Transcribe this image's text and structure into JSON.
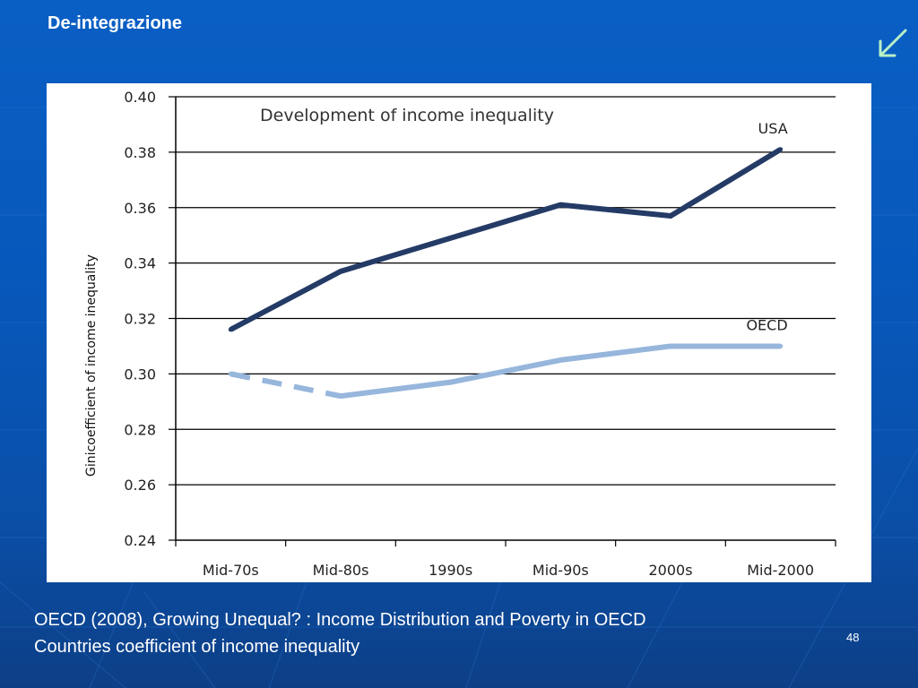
{
  "slide": {
    "title": "De-integrazione",
    "caption_line1": "OECD (2008), Growing Unequal? : Income Distribution and Poverty in OECD",
    "caption_line2": "Countries coefficient of income inequality",
    "page_number": "48",
    "nav_icon": "arrow-down-left-icon"
  },
  "colors": {
    "background": "#0758bb",
    "usa_series": "#243b66",
    "oecd_series": "#97b6dc"
  },
  "chart_data": {
    "type": "line",
    "title": "Development of income inequality",
    "xlabel": "",
    "ylabel": "Ginicoefficient of income inequality",
    "categories": [
      "Mid-70s",
      "Mid-80s",
      "1990s",
      "Mid-90s",
      "2000s",
      "Mid-2000"
    ],
    "ylim": [
      0.24,
      0.4
    ],
    "yticks": [
      "0.40",
      "0.38",
      "0.36",
      "0.34",
      "0.32",
      "0.30",
      "0.28",
      "0.26",
      "0.24"
    ],
    "grid": true,
    "series": [
      {
        "name": "USA",
        "style": "solid",
        "x": [
          0.5,
          1.5,
          2.5,
          3.5,
          4.5,
          5.5
        ],
        "values": [
          0.316,
          0.337,
          0.349,
          0.361,
          0.357,
          0.381
        ]
      },
      {
        "name": "OECD",
        "style": "dashed-then-solid",
        "x": [
          0.5,
          1.5,
          2.5,
          3.5,
          4.5,
          5.5
        ],
        "values": [
          0.3,
          0.292,
          0.297,
          0.305,
          0.31,
          0.31
        ]
      }
    ]
  }
}
